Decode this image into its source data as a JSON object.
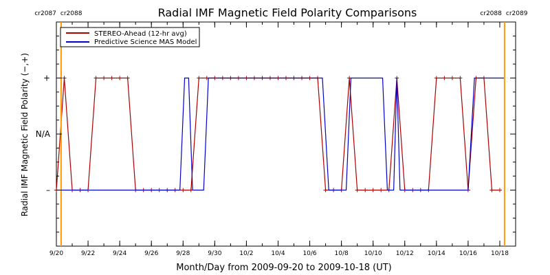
{
  "chart_data": {
    "type": "line",
    "title": "Radial IMF Magnetic Field Polarity Comparisons",
    "xlabel": "Month/Day from 2009-09-20 to 2009-10-18 (UT)",
    "ylabel": "Radial IMF Magnetic Field Polarity (−,+)",
    "x_range_days": [
      0,
      29
    ],
    "ylim": [
      -2,
      2
    ],
    "x_ticks": [
      {
        "label": "9/20",
        "day": 0
      },
      {
        "label": "9/22",
        "day": 2
      },
      {
        "label": "9/24",
        "day": 4
      },
      {
        "label": "9/26",
        "day": 6
      },
      {
        "label": "9/28",
        "day": 8
      },
      {
        "label": "9/30",
        "day": 10
      },
      {
        "label": "10/2",
        "day": 12
      },
      {
        "label": "10/4",
        "day": 14
      },
      {
        "label": "10/6",
        "day": 16
      },
      {
        "label": "10/8",
        "day": 18
      },
      {
        "label": "10/10",
        "day": 20
      },
      {
        "label": "10/12",
        "day": 22
      },
      {
        "label": "10/14",
        "day": 24
      },
      {
        "label": "10/16",
        "day": 26
      },
      {
        "label": "10/18",
        "day": 28
      }
    ],
    "y_ticks": [
      {
        "label": "+",
        "value": 1
      },
      {
        "label": "N/A",
        "value": 0
      },
      {
        "label": "–",
        "value": -1
      }
    ],
    "rotation_markers": [
      {
        "day": 0.3,
        "label_left": "cr2087",
        "label_right": "cr2088",
        "side": "left"
      },
      {
        "day": 28.3,
        "label_left": "cr2088",
        "label_right": "cr2089",
        "side": "right"
      }
    ],
    "legend_position": "top-left",
    "series": [
      {
        "name": "STEREO-Ahead (12-hr avg)",
        "color": "#aa0000",
        "marker": "plus",
        "points": [
          [
            0.0,
            -1
          ],
          [
            0.5,
            1
          ],
          [
            1.0,
            -1
          ],
          [
            1.5,
            -1
          ],
          [
            2.0,
            -1
          ],
          [
            2.5,
            1
          ],
          [
            3.0,
            1
          ],
          [
            3.5,
            1
          ],
          [
            4.0,
            1
          ],
          [
            4.5,
            1
          ],
          [
            5.0,
            -1
          ],
          [
            5.5,
            -1
          ],
          [
            6.0,
            -1
          ],
          [
            6.5,
            -1
          ],
          [
            7.0,
            -1
          ],
          [
            7.5,
            -1
          ],
          [
            8.0,
            -1
          ],
          [
            8.5,
            -1
          ],
          [
            9.0,
            1
          ],
          [
            9.5,
            1
          ],
          [
            10.0,
            1
          ],
          [
            10.5,
            1
          ],
          [
            11.0,
            1
          ],
          [
            11.5,
            1
          ],
          [
            12.0,
            1
          ],
          [
            12.5,
            1
          ],
          [
            13.0,
            1
          ],
          [
            13.5,
            1
          ],
          [
            14.0,
            1
          ],
          [
            14.5,
            1
          ],
          [
            15.0,
            1
          ],
          [
            15.5,
            1
          ],
          [
            16.0,
            1
          ],
          [
            16.5,
            1
          ],
          [
            17.0,
            -1
          ],
          [
            17.5,
            -1
          ],
          [
            18.0,
            -1
          ],
          [
            18.5,
            1
          ],
          [
            19.0,
            -1
          ],
          [
            19.5,
            -1
          ],
          [
            20.0,
            -1
          ],
          [
            20.5,
            -1
          ],
          [
            21.0,
            -1
          ],
          [
            21.5,
            1
          ],
          [
            22.0,
            -1
          ],
          [
            22.5,
            -1
          ],
          [
            23.0,
            -1
          ],
          [
            23.5,
            -1
          ],
          [
            24.0,
            1
          ],
          [
            24.5,
            1
          ],
          [
            25.0,
            1
          ],
          [
            25.5,
            1
          ],
          [
            26.0,
            -1
          ],
          [
            26.5,
            1
          ],
          [
            27.0,
            1
          ],
          [
            27.5,
            -1
          ],
          [
            28.0,
            -1
          ]
        ]
      },
      {
        "name": "Predictive Science MAS Model",
        "color": "#0000cc",
        "marker": "none",
        "points": [
          [
            0.0,
            -1
          ],
          [
            7.8,
            -1
          ],
          [
            8.1,
            1
          ],
          [
            8.35,
            1
          ],
          [
            8.6,
            -1
          ],
          [
            9.3,
            -1
          ],
          [
            9.6,
            1
          ],
          [
            16.8,
            1
          ],
          [
            17.2,
            -1
          ],
          [
            18.3,
            -1
          ],
          [
            18.6,
            1
          ],
          [
            20.6,
            1
          ],
          [
            20.9,
            -1
          ],
          [
            21.3,
            -1
          ],
          [
            21.5,
            1
          ],
          [
            21.7,
            -1
          ],
          [
            26.0,
            -1
          ],
          [
            26.4,
            1
          ],
          [
            28.3,
            1
          ]
        ]
      }
    ]
  }
}
